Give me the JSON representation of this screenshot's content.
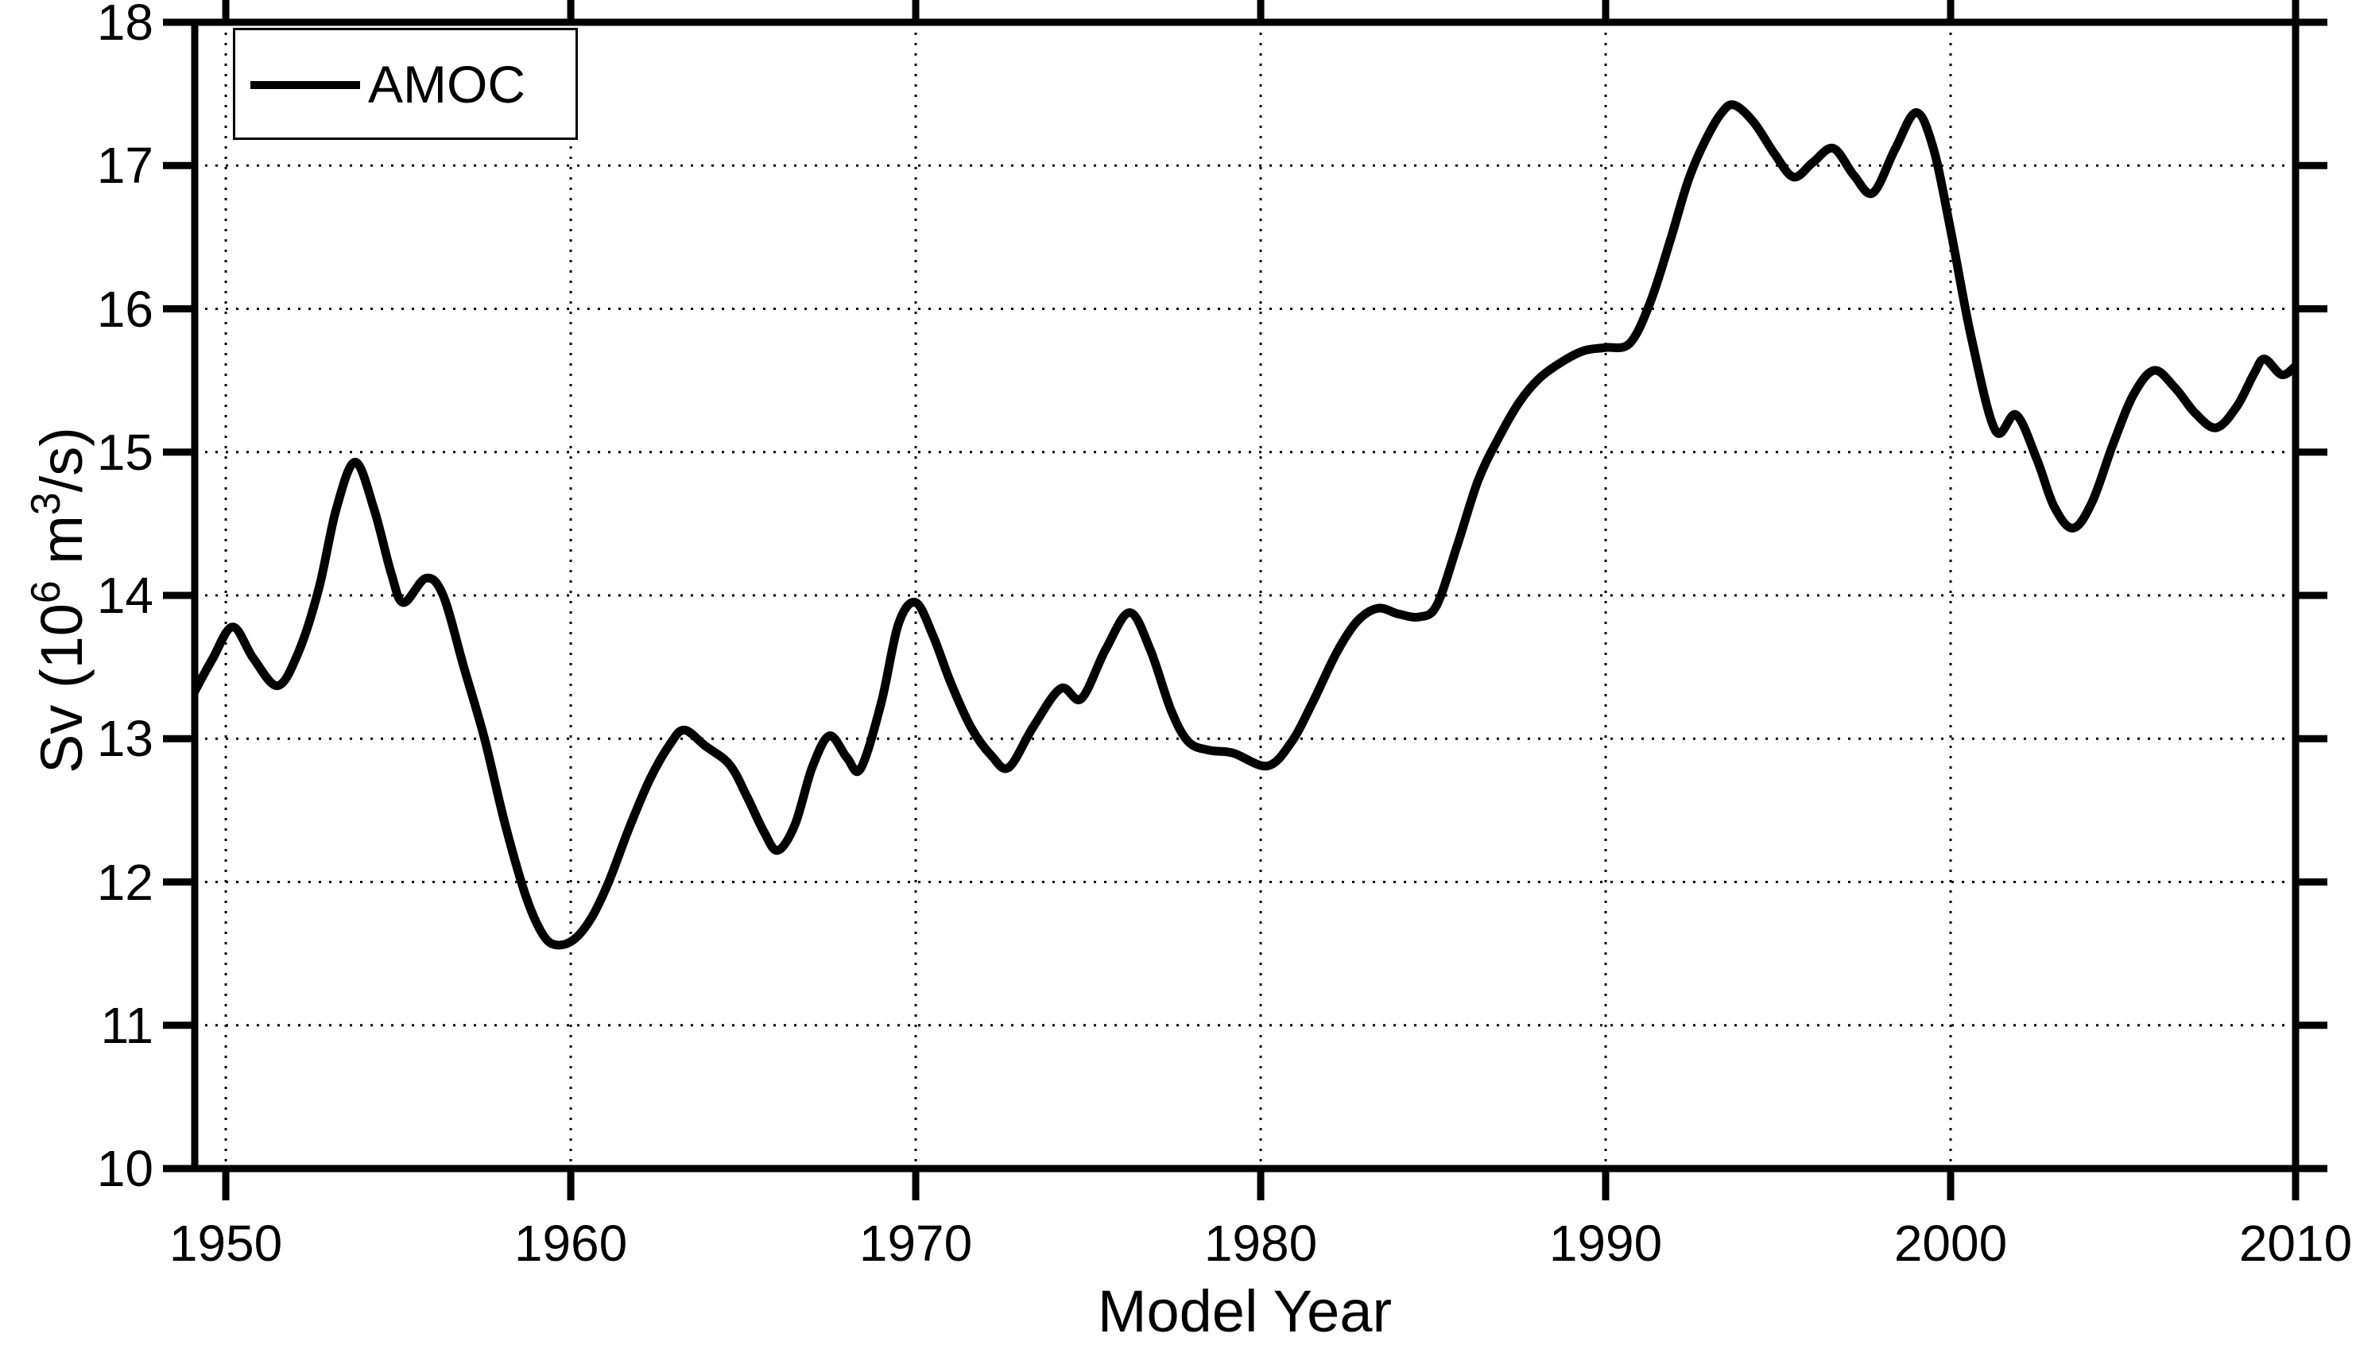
{
  "figure": {
    "background": "#ffffff",
    "foreground": "#000000"
  },
  "legend": {
    "label": "AMOC",
    "position": "top-left"
  },
  "axes": {
    "xlabel": "Model Year",
    "ylabel_parts": {
      "prefix": "Sv (10",
      "sup1": "6",
      "mid": " m",
      "sup2": "3",
      "suffix": "/s)"
    }
  },
  "chart_data": {
    "type": "line",
    "title": "",
    "xlabel": "Model Year",
    "ylabel": "Sv (10^6 m^3/s)",
    "xlim": [
      1949.1,
      2010
    ],
    "ylim": [
      10,
      18
    ],
    "x_ticks": [
      1950,
      1960,
      1970,
      1980,
      1990,
      2000,
      2010
    ],
    "y_ticks": [
      10,
      11,
      12,
      13,
      14,
      15,
      16,
      17,
      18
    ],
    "grid": "dotted, both axes",
    "legend_position": "top-left",
    "line_color": "#000000",
    "series": [
      {
        "name": "AMOC",
        "points": [
          [
            1949.1,
            13.33
          ],
          [
            1949.6,
            13.55
          ],
          [
            1950.2,
            13.78
          ],
          [
            1950.8,
            13.56
          ],
          [
            1951.5,
            13.37
          ],
          [
            1952.1,
            13.6
          ],
          [
            1952.7,
            14.05
          ],
          [
            1953.2,
            14.6
          ],
          [
            1953.75,
            14.93
          ],
          [
            1954.3,
            14.6
          ],
          [
            1954.8,
            14.15
          ],
          [
            1955.15,
            13.95
          ],
          [
            1955.8,
            14.12
          ],
          [
            1956.3,
            14.0
          ],
          [
            1956.9,
            13.5
          ],
          [
            1957.5,
            13.0
          ],
          [
            1958.1,
            12.4
          ],
          [
            1958.7,
            11.9
          ],
          [
            1959.2,
            11.63
          ],
          [
            1959.6,
            11.56
          ],
          [
            1960.1,
            11.6
          ],
          [
            1960.6,
            11.75
          ],
          [
            1961.1,
            12.0
          ],
          [
            1961.7,
            12.38
          ],
          [
            1962.3,
            12.72
          ],
          [
            1962.9,
            12.97
          ],
          [
            1963.3,
            13.06
          ],
          [
            1963.9,
            12.95
          ],
          [
            1964.6,
            12.82
          ],
          [
            1965.1,
            12.6
          ],
          [
            1965.6,
            12.35
          ],
          [
            1966.0,
            12.22
          ],
          [
            1966.5,
            12.4
          ],
          [
            1967.0,
            12.8
          ],
          [
            1967.5,
            13.02
          ],
          [
            1968.0,
            12.87
          ],
          [
            1968.4,
            12.79
          ],
          [
            1969.0,
            13.25
          ],
          [
            1969.5,
            13.8
          ],
          [
            1970.0,
            13.95
          ],
          [
            1970.5,
            13.72
          ],
          [
            1971.0,
            13.4
          ],
          [
            1971.6,
            13.08
          ],
          [
            1972.2,
            12.88
          ],
          [
            1972.7,
            12.8
          ],
          [
            1973.4,
            13.08
          ],
          [
            1974.2,
            13.35
          ],
          [
            1974.8,
            13.28
          ],
          [
            1975.5,
            13.62
          ],
          [
            1976.2,
            13.88
          ],
          [
            1976.8,
            13.62
          ],
          [
            1977.4,
            13.2
          ],
          [
            1977.9,
            12.98
          ],
          [
            1978.5,
            12.92
          ],
          [
            1979.2,
            12.9
          ],
          [
            1980.2,
            12.81
          ],
          [
            1980.9,
            12.98
          ],
          [
            1981.5,
            13.25
          ],
          [
            1982.2,
            13.6
          ],
          [
            1982.8,
            13.82
          ],
          [
            1983.4,
            13.91
          ],
          [
            1984.0,
            13.87
          ],
          [
            1984.6,
            13.85
          ],
          [
            1985.1,
            13.93
          ],
          [
            1985.7,
            14.35
          ],
          [
            1986.3,
            14.8
          ],
          [
            1986.9,
            15.1
          ],
          [
            1987.5,
            15.35
          ],
          [
            1988.1,
            15.52
          ],
          [
            1988.8,
            15.64
          ],
          [
            1989.4,
            15.71
          ],
          [
            1990.0,
            15.73
          ],
          [
            1990.7,
            15.76
          ],
          [
            1991.3,
            16.05
          ],
          [
            1991.9,
            16.5
          ],
          [
            1992.4,
            16.9
          ],
          [
            1992.9,
            17.18
          ],
          [
            1993.4,
            17.38
          ],
          [
            1993.75,
            17.42
          ],
          [
            1994.3,
            17.3
          ],
          [
            1994.9,
            17.08
          ],
          [
            1995.45,
            16.92
          ],
          [
            1996.0,
            17.02
          ],
          [
            1996.6,
            17.12
          ],
          [
            1997.2,
            16.93
          ],
          [
            1997.75,
            16.81
          ],
          [
            1998.4,
            17.12
          ],
          [
            1999.0,
            17.37
          ],
          [
            1999.5,
            17.12
          ],
          [
            2000.0,
            16.55
          ],
          [
            2000.6,
            15.8
          ],
          [
            2001.3,
            15.15
          ],
          [
            2001.9,
            15.26
          ],
          [
            2002.5,
            14.95
          ],
          [
            2003.0,
            14.62
          ],
          [
            2003.55,
            14.47
          ],
          [
            2004.1,
            14.65
          ],
          [
            2004.7,
            15.05
          ],
          [
            2005.3,
            15.4
          ],
          [
            2005.9,
            15.57
          ],
          [
            2006.5,
            15.45
          ],
          [
            2007.1,
            15.27
          ],
          [
            2007.7,
            15.17
          ],
          [
            2008.3,
            15.32
          ],
          [
            2008.8,
            15.55
          ],
          [
            2009.1,
            15.65
          ],
          [
            2009.6,
            15.54
          ],
          [
            2010.0,
            15.6
          ]
        ]
      }
    ]
  }
}
